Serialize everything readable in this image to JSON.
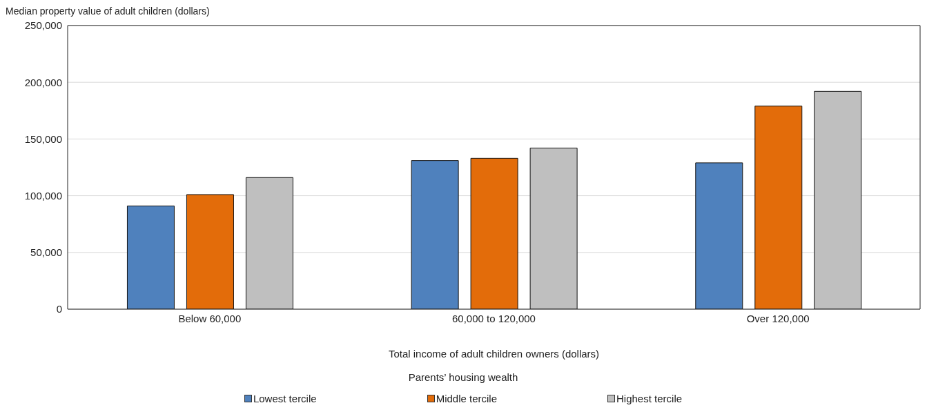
{
  "chart_data": {
    "type": "bar",
    "ylabel": "Median property value of adult children (dollars)",
    "xlabel": "Total income of adult children owners (dollars)",
    "legend_title": "Parents’ housing wealth",
    "categories": [
      "Below 60,000",
      "60,000 to 120,000",
      "Over 120,000"
    ],
    "series": [
      {
        "name": "Lowest tercile",
        "color": "#4f81bd",
        "values": [
          91000,
          131000,
          129000
        ]
      },
      {
        "name": "Middle tercile",
        "color": "#e36c0a",
        "values": [
          101000,
          133000,
          179000
        ]
      },
      {
        "name": "Highest tercile",
        "color": "#bfbfbf",
        "values": [
          116000,
          142000,
          192000
        ]
      }
    ],
    "ylim": [
      0,
      250000
    ],
    "yticks": [
      0,
      {
        "value": 50000,
        "label": "50,000"
      },
      {
        "value": 100000,
        "label": "100,000"
      },
      {
        "value": 150000,
        "label": "150,000"
      },
      {
        "value": 200000,
        "label": "200,000"
      },
      {
        "value": 250000,
        "label": "250,000"
      }
    ],
    "grid": "y",
    "legend": "bottom"
  }
}
